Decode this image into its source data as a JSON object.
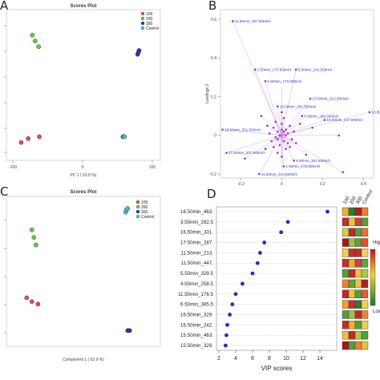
{
  "panels": {
    "A": "A",
    "B": "B",
    "C": "C",
    "D": "D"
  },
  "chart_data": [
    {
      "type": "scatter",
      "panel": "A",
      "title": "Scores Plot",
      "xlabel": "PC 1 ( 63.8 %)",
      "ylabel": "",
      "xlim": [
        -100,
        100
      ],
      "xticks": [
        -100,
        0,
        100
      ],
      "legend_position": "top-left",
      "series": [
        {
          "name": "100",
          "color": "#e05050",
          "points": [
            [
              -88,
              -3.2
            ],
            [
              -78,
              -3.0
            ],
            [
              -62,
              -2.9
            ]
          ]
        },
        {
          "name": "200",
          "color": "#66cc44",
          "points": [
            [
              -72,
              2.4
            ],
            [
              -68,
              2.1
            ],
            [
              -63,
              1.8
            ]
          ]
        },
        {
          "name": "300",
          "color": "#3030c0",
          "points": [
            [
              79,
              1.4
            ],
            [
              80,
              1.5
            ],
            [
              81,
              1.6
            ]
          ]
        },
        {
          "name": "Control",
          "color": "#40c8c8",
          "points": [
            [
              58,
              -2.9
            ],
            [
              59,
              -2.9
            ],
            [
              60,
              -2.9
            ]
          ]
        }
      ]
    },
    {
      "type": "scatter",
      "panel": "B",
      "xlabel": "",
      "ylabel": "Loadings 2",
      "xlim": [
        -0.3,
        0.45
      ],
      "ylim": [
        -0.22,
        0.65
      ],
      "xticks": [
        -0.2,
        0,
        0.2,
        0.4
      ],
      "yticks": [
        -0.2,
        0,
        0.2,
        0.4,
        0.6
      ],
      "labeled_points": [
        {
          "label": "11.50min_187.500m/z",
          "x": -0.24,
          "y": 0.59
        },
        {
          "label": "1.50min_170.500m/z",
          "x": -0.13,
          "y": 0.34
        },
        {
          "label": "0.50min_173.500m/z",
          "x": -0.08,
          "y": 0.28
        },
        {
          "label": "6.50min_181.500m/z",
          "x": 0.07,
          "y": 0.34
        },
        {
          "label": "13.50min_312.500m/z",
          "x": 0.14,
          "y": 0.19
        },
        {
          "label": "13.50min_201.500m/z",
          "x": -0.02,
          "y": 0.15
        },
        {
          "label": "8.50min_299.500m/z",
          "x": 0.1,
          "y": 0.1
        },
        {
          "label": "10.50min_447.500m/z",
          "x": 0.21,
          "y": 0.08
        },
        {
          "label": "16.50min_331.500m/z",
          "x": -0.29,
          "y": 0.03
        },
        {
          "label": "17.50min_207.500m/z",
          "x": -0.27,
          "y": -0.09
        },
        {
          "label": "9.50min_307.500m/z",
          "x": 0.06,
          "y": -0.13
        },
        {
          "label": "1.50min_176.500m/z",
          "x": 0.01,
          "y": -0.16
        },
        {
          "label": "11.50min_213.500m/z",
          "x": -0.11,
          "y": -0.2
        },
        {
          "label": "10.50",
          "x": 0.43,
          "y": 0.12
        }
      ],
      "cluster_points": [
        [
          0,
          0
        ],
        [
          0.02,
          0.03
        ],
        [
          -0.02,
          0.02
        ],
        [
          0.01,
          -0.03
        ],
        [
          -0.01,
          -0.05
        ],
        [
          0.03,
          0.01
        ],
        [
          -0.03,
          -0.01
        ],
        [
          0.0,
          0.06
        ],
        [
          0.02,
          -0.07
        ],
        [
          -0.04,
          0.04
        ],
        [
          0.05,
          -0.02
        ],
        [
          -0.05,
          -0.03
        ],
        [
          0.01,
          0.09
        ],
        [
          -0.02,
          -0.09
        ],
        [
          0.04,
          0.05
        ],
        [
          -0.06,
          0.01
        ],
        [
          0.06,
          0.02
        ],
        [
          0.0,
          -0.11
        ],
        [
          0.03,
          -0.04
        ],
        [
          -0.03,
          0.07
        ],
        [
          0.01,
          0.02
        ],
        [
          -0.01,
          0.0
        ],
        [
          0.02,
          0.0
        ],
        [
          -0.02,
          -0.02
        ],
        [
          0.0,
          0.03
        ],
        [
          0.04,
          -0.06
        ],
        [
          -0.04,
          -0.06
        ],
        [
          0.07,
          -0.04
        ],
        [
          -0.07,
          0.05
        ],
        [
          0.0,
          0.12
        ],
        [
          -0.08,
          -0.07
        ],
        [
          0.09,
          0.06
        ],
        [
          0.15,
          0.04
        ],
        [
          0.28,
          0.0
        ],
        [
          0.3,
          -0.19
        ],
        [
          -0.18,
          -0.12
        ],
        [
          -0.1,
          0.1
        ],
        [
          0.12,
          -0.1
        ]
      ]
    },
    {
      "type": "scatter",
      "panel": "C",
      "title": "Scores Plot",
      "xlabel": "Component 1 ( 62.9 %)",
      "ylabel": "",
      "legend_position": "top-left",
      "series": [
        {
          "name": "100",
          "color": "#e05050",
          "points": [
            [
              -55,
              -3.2
            ],
            [
              -50,
              -3.5
            ],
            [
              -44,
              -3.7
            ]
          ]
        },
        {
          "name": "200",
          "color": "#66cc44",
          "points": [
            [
              -50,
              2.2
            ],
            [
              -48,
              1.6
            ],
            [
              -46,
              1.0
            ]
          ]
        },
        {
          "name": "300",
          "color": "#3030c0",
          "points": [
            [
              43,
              -5.8
            ],
            [
              44,
              -5.8
            ],
            [
              45,
              -5.8
            ]
          ]
        },
        {
          "name": "Control",
          "color": "#40c8c8",
          "points": [
            [
              41,
              3.6
            ],
            [
              42,
              3.8
            ],
            [
              43,
              3.9
            ]
          ]
        }
      ]
    },
    {
      "type": "scatter",
      "panel": "D",
      "xlabel": "VIP scores",
      "ylabel": "",
      "xlim": [
        2,
        16
      ],
      "xticks": [
        2,
        4,
        6,
        8,
        10,
        12,
        14
      ],
      "heatmap_columns": [
        "100",
        "200",
        "300",
        "Control"
      ],
      "colorbar": {
        "high": "High",
        "low": "Low"
      },
      "features": [
        "16.50min_463.",
        "3.50min_282.5",
        "16.50min_331.",
        "17.50min_287.",
        "11.50min_213.",
        "11.50min_447.",
        "5.50min_329.5",
        "4.50min_258.5",
        "11.50min_176.5",
        "6.50min_385.5",
        "16.50min_329.",
        "16.50min_242.",
        "15.50min_463.",
        "15.50min_329."
      ],
      "vip": [
        14.9,
        10.2,
        9.4,
        7.4,
        6.9,
        6.6,
        6.0,
        4.8,
        4.0,
        3.6,
        3.3,
        3.0,
        2.9,
        2.8
      ],
      "heatmap": [
        [
          "#f0b030",
          "#2e7d2e",
          "#b02020",
          "#f08030"
        ],
        [
          "#c03030",
          "#f0c040",
          "#d04040",
          "#5a9a3a"
        ],
        [
          "#d0d040",
          "#c02828",
          "#50a040",
          "#e87030"
        ],
        [
          "#a81818",
          "#a0c040",
          "#60a030",
          "#e05030"
        ],
        [
          "#f0d050",
          "#c03030",
          "#c03030",
          "#f4d060"
        ],
        [
          "#c03030",
          "#e8b030",
          "#d04040",
          "#60a040"
        ],
        [
          "#50a040",
          "#c82828",
          "#f0c040",
          "#a8c848"
        ],
        [
          "#f08030",
          "#60a030",
          "#f0c040",
          "#b02020"
        ],
        [
          "#c02828",
          "#f0c040",
          "#50a040",
          "#e06030"
        ],
        [
          "#f0a030",
          "#c03030",
          "#2e7d2e",
          "#f0d050"
        ],
        [
          "#50a040",
          "#a0c040",
          "#c02828",
          "#f08030"
        ],
        [
          "#c03030",
          "#f0b030",
          "#50a040",
          "#e8d050"
        ],
        [
          "#f0c040",
          "#c02828",
          "#b0c848",
          "#50a040"
        ],
        [
          "#a81818",
          "#50a040",
          "#f08030",
          "#e8c040"
        ]
      ]
    }
  ]
}
